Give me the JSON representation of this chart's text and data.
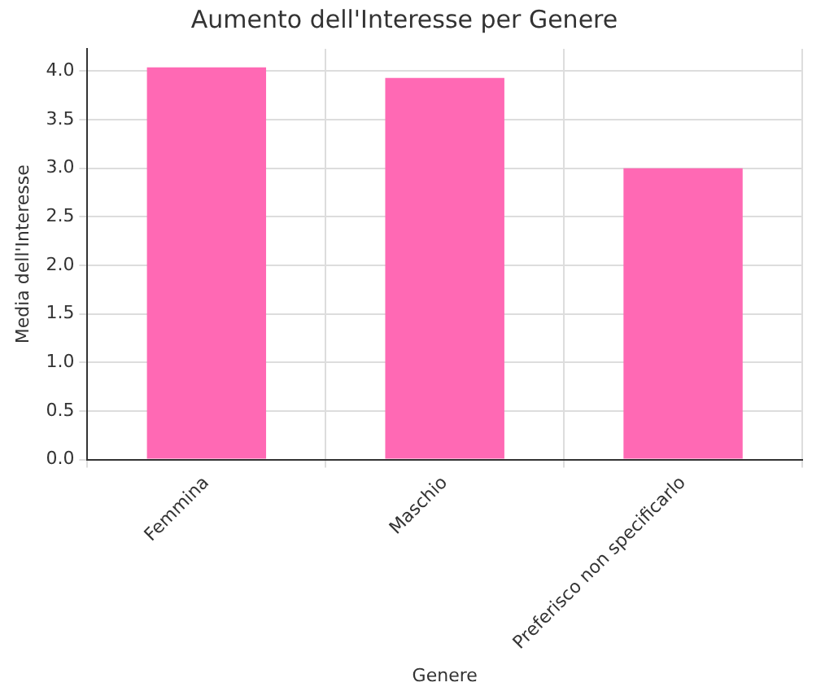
{
  "chart_data": {
    "type": "bar",
    "title": "Aumento dell'Interesse per Genere",
    "xlabel": "Genere",
    "ylabel": "Media dell'Interesse",
    "categories": [
      "Femmina",
      "Maschio",
      "Preferisco non specificarlo"
    ],
    "values": [
      4.04,
      3.93,
      3.0
    ],
    "color": "#ff69b4",
    "ylim": [
      0,
      4.23
    ],
    "yticks": [
      {
        "value": 0,
        "label": "0.0"
      },
      {
        "value": 0.5,
        "label": "0.5"
      },
      {
        "value": 1,
        "label": "1.0"
      },
      {
        "value": 1.5,
        "label": "1.5"
      },
      {
        "value": 2,
        "label": "2.0"
      },
      {
        "value": 2.5,
        "label": "2.5"
      },
      {
        "value": 3,
        "label": "3.0"
      },
      {
        "value": 3.5,
        "label": "3.5"
      },
      {
        "value": 4,
        "label": "4.0"
      }
    ],
    "grid": true
  }
}
